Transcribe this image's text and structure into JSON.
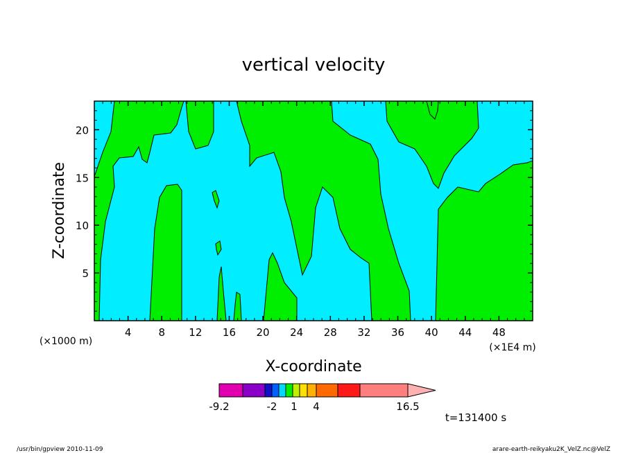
{
  "chart_data": {
    "type": "heatmap",
    "title": "vertical velocity",
    "xlabel": "X-coordinate",
    "ylabel": "Z-coordinate",
    "x_unit_label": "(×1E4 m)",
    "y_unit_label": "(×1000 m)",
    "xlim": [
      0,
      52
    ],
    "ylim": [
      0,
      23
    ],
    "x_ticks": [
      "4",
      "8",
      "12",
      "16",
      "20",
      "24",
      "28",
      "32",
      "36",
      "40",
      "44",
      "48"
    ],
    "y_ticks": [
      "5",
      "10",
      "15",
      "20"
    ],
    "contour_colors": {
      "negative": "#00eeff",
      "positive": "#00ee00"
    },
    "colorbar": {
      "labels": [
        "-9.2",
        "-2",
        "1",
        "4",
        "16.5"
      ],
      "colors": [
        "#e000b0",
        "#8a00c8",
        "#1010c8",
        "#0060ff",
        "#00d8ff",
        "#00ee00",
        "#c0f000",
        "#ffe000",
        "#ffb000",
        "#ff6a00",
        "#ff1a1a",
        "#ff7f7f",
        "#ffb0b0"
      ]
    },
    "time_label": "t=131400 s"
  },
  "footer": {
    "left": "/usr/bin/gpview   2010-11-09",
    "right": "arare-earth-reikyaku2K_VelZ.nc@VelZ"
  }
}
